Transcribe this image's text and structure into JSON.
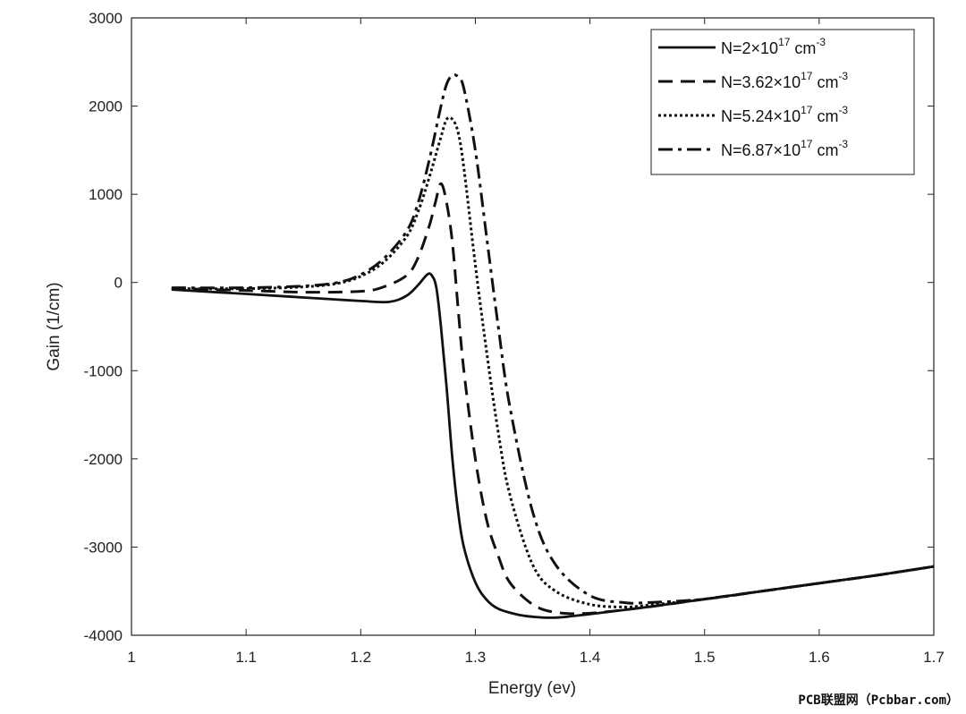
{
  "chart_data": {
    "type": "line",
    "title": "",
    "xlabel": "Energy (ev)",
    "ylabel": "Gain (1/cm)",
    "xlim": [
      1,
      1.7
    ],
    "ylim": [
      -4000,
      3000
    ],
    "xticks": [
      "1",
      "1.1",
      "1.2",
      "1.3",
      "1.4",
      "1.5",
      "1.6",
      "1.7"
    ],
    "yticks": [
      "3000",
      "2000",
      "1000",
      "0",
      "-1000",
      "-2000",
      "-3000",
      "-4000"
    ],
    "grid": false,
    "legend_position": "top-right",
    "series": [
      {
        "name": "N=2×10^17 cm^-3",
        "label_base": "N=2×10",
        "label_exp": "17",
        "label_unit": " cm",
        "label_unit_exp": "-3",
        "style": "solid",
        "x": [
          1.035,
          1.1,
          1.15,
          1.2,
          1.225,
          1.24,
          1.25,
          1.258,
          1.262,
          1.266,
          1.27,
          1.275,
          1.28,
          1.285,
          1.29,
          1.3,
          1.31,
          1.32,
          1.335,
          1.35,
          1.37,
          1.4,
          1.45,
          1.5,
          1.55,
          1.6,
          1.65,
          1.7
        ],
        "y": [
          -80,
          -130,
          -170,
          -210,
          -220,
          -150,
          -30,
          90,
          80,
          -60,
          -500,
          -1200,
          -2000,
          -2600,
          -3000,
          -3400,
          -3600,
          -3700,
          -3760,
          -3790,
          -3800,
          -3760,
          -3680,
          -3590,
          -3500,
          -3410,
          -3320,
          -3220
        ]
      },
      {
        "name": "N=3.62×10^17 cm^-3",
        "label_base": "N=3.62×10",
        "label_exp": "17",
        "label_unit": " cm",
        "label_unit_exp": "-3",
        "style": "dashed",
        "x": [
          1.035,
          1.1,
          1.15,
          1.2,
          1.22,
          1.24,
          1.25,
          1.26,
          1.265,
          1.27,
          1.275,
          1.28,
          1.285,
          1.29,
          1.3,
          1.31,
          1.32,
          1.33,
          1.35,
          1.37,
          1.4,
          1.45,
          1.5,
          1.55,
          1.6,
          1.65,
          1.7
        ],
        "y": [
          -70,
          -90,
          -110,
          -100,
          -50,
          80,
          280,
          650,
          900,
          1120,
          900,
          450,
          -300,
          -1000,
          -2000,
          -2700,
          -3100,
          -3400,
          -3650,
          -3740,
          -3750,
          -3680,
          -3590,
          -3500,
          -3410,
          -3320,
          -3220
        ]
      },
      {
        "name": "N=5.24×10^17 cm^-3",
        "label_base": "N=5.24×10",
        "label_exp": "17",
        "label_unit": " cm",
        "label_unit_exp": "-3",
        "style": "dotted",
        "x": [
          1.035,
          1.1,
          1.15,
          1.18,
          1.2,
          1.22,
          1.24,
          1.25,
          1.26,
          1.27,
          1.275,
          1.28,
          1.285,
          1.29,
          1.3,
          1.31,
          1.32,
          1.33,
          1.35,
          1.37,
          1.4,
          1.43,
          1.45,
          1.5,
          1.55,
          1.6,
          1.65,
          1.7
        ],
        "y": [
          -70,
          -70,
          -50,
          -10,
          70,
          230,
          520,
          800,
          1200,
          1650,
          1850,
          1850,
          1700,
          1300,
          200,
          -800,
          -1700,
          -2400,
          -3200,
          -3500,
          -3650,
          -3680,
          -3660,
          -3590,
          -3500,
          -3410,
          -3320,
          -3220
        ]
      },
      {
        "name": "N=6.87×10^17 cm^-3",
        "label_base": "N=6.87×10",
        "label_exp": "17",
        "label_unit": " cm",
        "label_unit_exp": "-3",
        "style": "dash-dot",
        "x": [
          1.035,
          1.1,
          1.15,
          1.18,
          1.2,
          1.22,
          1.24,
          1.25,
          1.26,
          1.27,
          1.275,
          1.28,
          1.285,
          1.29,
          1.3,
          1.31,
          1.32,
          1.33,
          1.35,
          1.37,
          1.4,
          1.43,
          1.45,
          1.5,
          1.55,
          1.6,
          1.65,
          1.7
        ],
        "y": [
          -60,
          -60,
          -40,
          0,
          90,
          270,
          580,
          900,
          1400,
          2000,
          2250,
          2350,
          2330,
          2200,
          1500,
          500,
          -500,
          -1400,
          -2600,
          -3200,
          -3550,
          -3630,
          -3630,
          -3590,
          -3500,
          -3410,
          -3320,
          -3220
        ]
      }
    ]
  },
  "watermark": "PCB联盟网（Pcbbar.com）"
}
